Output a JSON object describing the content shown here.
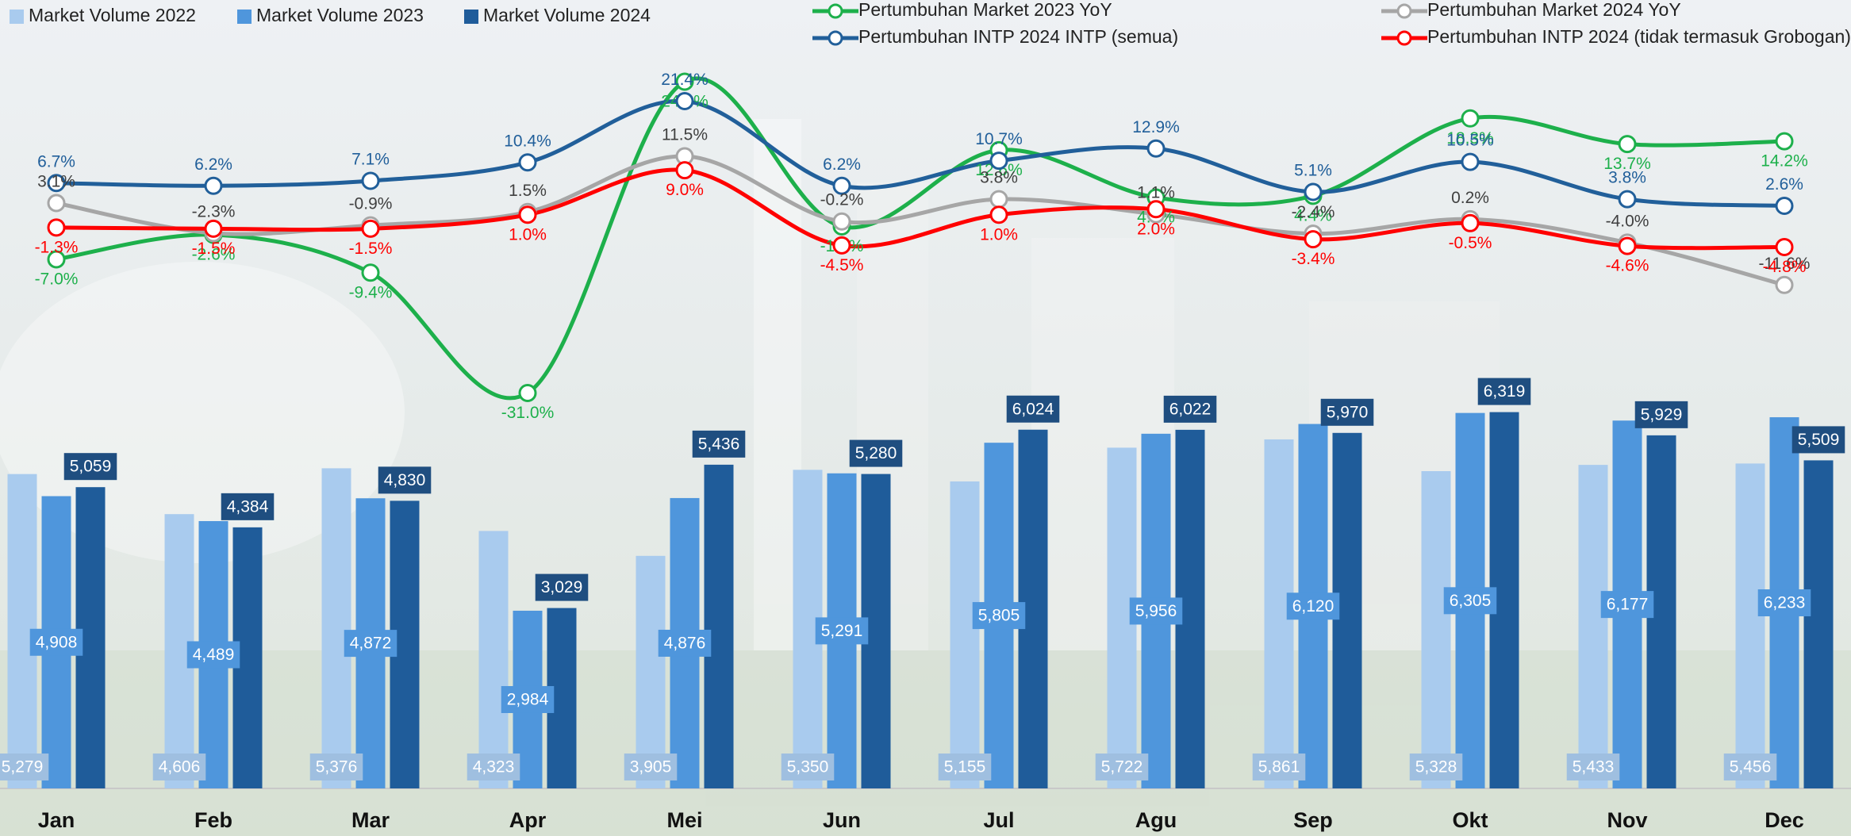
{
  "chart_data": {
    "type": "combo",
    "categories": [
      "Jan",
      "Feb",
      "Mar",
      "Apr",
      "Mei",
      "Jun",
      "Jul",
      "Agu",
      "Sep",
      "Okt",
      "Nov",
      "Dec"
    ],
    "ylim": [
      0,
      13000
    ],
    "y2lim": [
      -102,
      37
    ],
    "series": [
      {
        "name": "Market Volume 2022",
        "type": "bar",
        "color": "#a9cbee",
        "values": [
          5279,
          4606,
          5376,
          4323,
          3905,
          5350,
          5155,
          5722,
          5861,
          5328,
          5433,
          5456
        ],
        "value_labels": [
          "5,279",
          "4,606",
          "5,376",
          "4,323",
          "3,905",
          "5,350",
          "5,155",
          "5,722",
          "5,861",
          "5,328",
          "5,433",
          "5,456"
        ]
      },
      {
        "name": "Market Volume 2023",
        "type": "bar",
        "color": "#4f96dc",
        "values": [
          4908,
          4489,
          4872,
          2984,
          4876,
          5291,
          5805,
          5956,
          6120,
          6305,
          6177,
          6233
        ],
        "value_labels": [
          "4,908",
          "4,489",
          "4,872",
          "2,984",
          "4,876",
          "5,291",
          "5,805",
          "5,956",
          "6,120",
          "6,305",
          "6,177",
          "6,233"
        ]
      },
      {
        "name": "Market Volume 2024",
        "type": "bar",
        "color": "#1f5c9a",
        "values": [
          5059,
          4384,
          4830,
          3029,
          5436,
          5280,
          6024,
          6022,
          5970,
          6319,
          5929,
          5509
        ],
        "value_labels": [
          "5,059",
          "4,384",
          "4,830",
          "3,029",
          "5,436",
          "5,280",
          "6,024",
          "6,022",
          "5,970",
          "6,319",
          "5,929",
          "5,509"
        ]
      },
      {
        "name": "Pertumbuhan Market 2023 YoY",
        "type": "line",
        "axis": "y2",
        "color": "#1db04b",
        "values": [
          -7.0,
          -2.6,
          -9.4,
          -31.0,
          24.9,
          -1.1,
          12.6,
          4.1,
          4.4,
          18.3,
          13.7,
          14.2
        ],
        "value_labels": [
          "-7.0%",
          "-2.6%",
          "-9.4%",
          "-31.0%",
          "24.9%",
          "-1.1%",
          "12.6%",
          "4.1%",
          "4.4%",
          "18.3%",
          "13.7%",
          "14.2%"
        ]
      },
      {
        "name": "Pertumbuhan INTP 2024 INTP (semua)",
        "type": "line",
        "axis": "y2",
        "color": "#215f9a",
        "values": [
          6.7,
          6.2,
          7.1,
          10.4,
          21.4,
          6.2,
          10.7,
          12.9,
          5.1,
          10.5,
          3.8,
          2.6
        ],
        "value_labels": [
          "6.7%",
          "6.2%",
          "7.1%",
          "10.4%",
          "21.4%",
          "6.2%",
          "10.7%",
          "12.9%",
          "5.1%",
          "10.5%",
          "3.8%",
          "2.6%"
        ]
      },
      {
        "name": "Pertumbuhan Market 2024  YoY",
        "type": "line",
        "axis": "y2",
        "color": "#a6a6a6",
        "values": [
          3.1,
          -2.3,
          -0.9,
          1.5,
          11.5,
          -0.2,
          3.8,
          1.1,
          -2.4,
          0.2,
          -4.0,
          -11.6
        ],
        "value_labels": [
          "3.1%",
          "-2.3%",
          "-0.9%",
          "1.5%",
          "11.5%",
          "-0.2%",
          "3.8%",
          "1.1%",
          "-2.4%",
          "0.2%",
          "-4.0%",
          "-11.6%"
        ]
      },
      {
        "name": "Pertumbuhan INTP 2024  (tidak termasuk Grobogan)",
        "type": "line",
        "axis": "y2",
        "color": "#ff0000",
        "values": [
          -1.3,
          -1.5,
          -1.5,
          1.0,
          9.0,
          -4.5,
          1.0,
          2.0,
          -3.4,
          -0.5,
          -4.6,
          -4.8
        ],
        "value_labels": [
          "-1.3%",
          "-1.5%",
          "-1.5%",
          "1.0%",
          "9.0%",
          "-4.5%",
          "1.0%",
          "2.0%",
          "-3.4%",
          "-0.5%",
          "-4.6%",
          "-4.8%"
        ]
      }
    ]
  }
}
